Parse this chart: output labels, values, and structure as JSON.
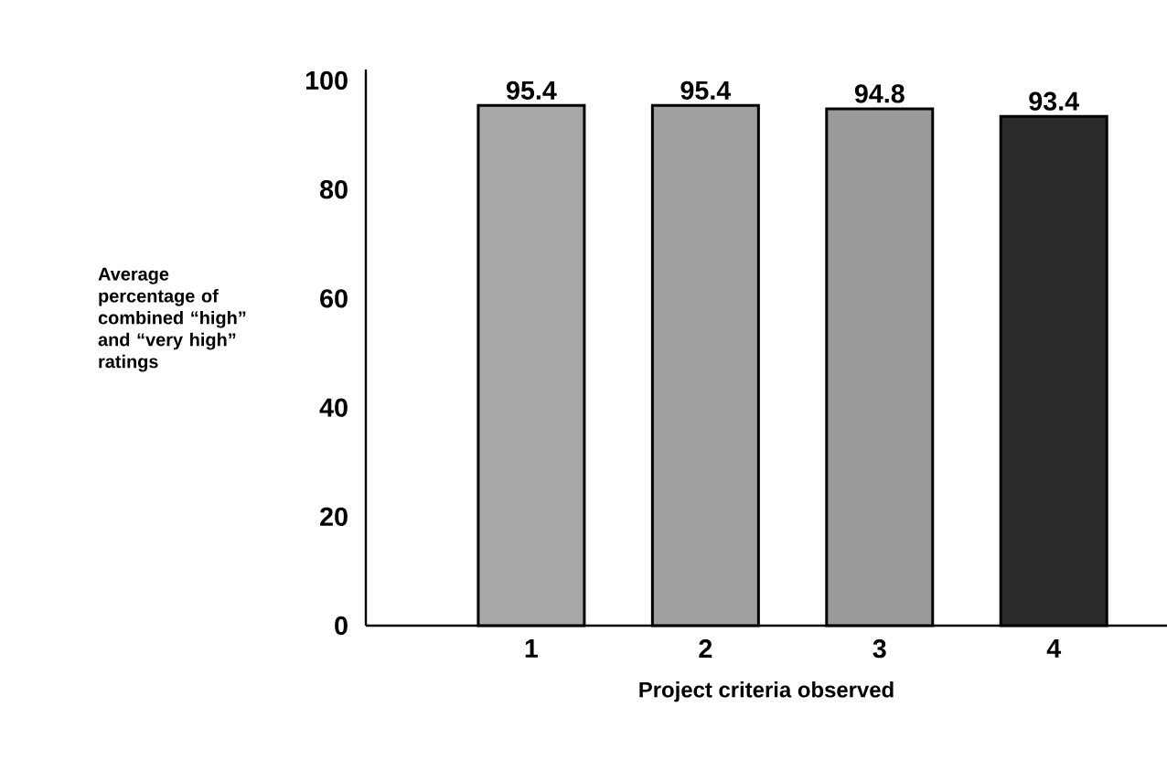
{
  "chart_data": {
    "type": "bar",
    "ylabel": "Average percentage of combined “high” and “very high” ratings",
    "xlabel": "Project criteria observed",
    "categories": [
      "1",
      "2",
      "3",
      "4"
    ],
    "values": [
      95.4,
      95.4,
      94.8,
      93.4
    ],
    "colors": [
      "#a8a8a8",
      "#a0a0a0",
      "#9a9a9a",
      "#2a2a2a"
    ],
    "ylim": [
      0,
      102
    ],
    "yticks": [
      0,
      20,
      40,
      60,
      80,
      100
    ],
    "data_labels": true
  }
}
